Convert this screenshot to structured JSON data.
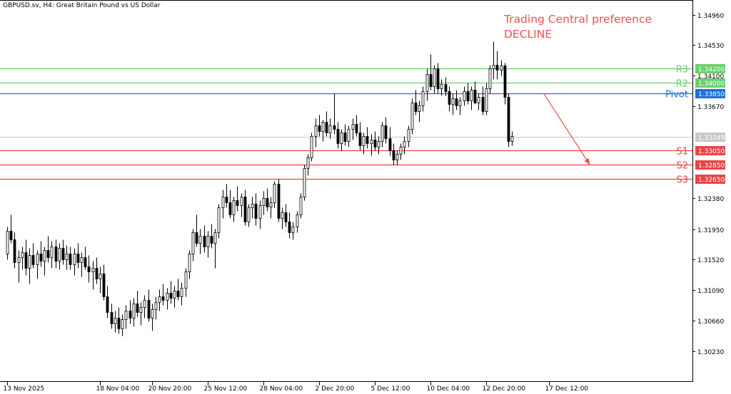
{
  "header": {
    "symbol_line": "GBPUSD.sv, H4:  Great Britain Pound vs US Dollar"
  },
  "annotation": {
    "line1": "Trading Central preference",
    "line2": "DECLINE",
    "color": "#f05050"
  },
  "colors": {
    "resistance": "#6bcf6b",
    "pivot": "#1c6fd8",
    "support": "#e84545",
    "current_price": "#c8c8c8",
    "bull_candle": "#ffffff",
    "bear_candle": "#000000"
  },
  "chart_data": {
    "type": "candlestick",
    "title": "GBPUSD.sv, H4:  Great Britain Pound vs US Dollar",
    "ylim": [
      1.3,
      1.5171
    ],
    "y_ticks": [
      "1.34960",
      "1.34530",
      "1.34100",
      "1.33670",
      "1.32380",
      "1.31950",
      "1.31520",
      "1.31090",
      "1.30660",
      "1.30230"
    ],
    "x_ticks": [
      {
        "label": "13 Nov 2025",
        "index": 0
      },
      {
        "label": "18 Nov 04:00",
        "index": 25
      },
      {
        "label": "20 Nov 20:00",
        "index": 39
      },
      {
        "label": "25 Nov 12:00",
        "index": 54
      },
      {
        "label": "28 Nov 04:00",
        "index": 69
      },
      {
        "label": "2 Dec 20:00",
        "index": 84
      },
      {
        "label": "5 Dec 12:00",
        "index": 99
      },
      {
        "label": "10 Dec 04:00",
        "index": 114
      },
      {
        "label": "12 Dec 20:00",
        "index": 129
      },
      {
        "label": "17 Dec 12:00",
        "index": 146
      }
    ],
    "levels": [
      {
        "name": "R3",
        "value": 1.342,
        "label": "1.34200",
        "kind": "resistance"
      },
      {
        "name": "R2",
        "value": 1.34,
        "label": "1.34000",
        "kind": "resistance"
      },
      {
        "name": "Pivot",
        "value": 1.3385,
        "label": "1.33850",
        "kind": "pivot"
      },
      {
        "name": "S1",
        "value": 1.3305,
        "label": "1.33050",
        "kind": "support"
      },
      {
        "name": "S2",
        "value": 1.3285,
        "label": "1.32850",
        "kind": "support"
      },
      {
        "name": "S3",
        "value": 1.3265,
        "label": "1.32650",
        "kind": "support"
      }
    ],
    "current_price": {
      "value": 1.33249,
      "label": "1.33249"
    },
    "forecast_arrow": {
      "from_index": 144,
      "from_price": 1.3385,
      "to_index": 157,
      "to_price": 1.3285
    },
    "candles": [
      [
        1.316,
        1.3198,
        1.3152,
        1.3192
      ],
      [
        1.3192,
        1.3215,
        1.3175,
        1.318
      ],
      [
        1.318,
        1.319,
        1.314,
        1.3148
      ],
      [
        1.3148,
        1.3165,
        1.312,
        1.3155
      ],
      [
        1.3155,
        1.317,
        1.3138,
        1.3162
      ],
      [
        1.3162,
        1.318,
        1.313,
        1.314
      ],
      [
        1.314,
        1.3168,
        1.3118,
        1.3158
      ],
      [
        1.3158,
        1.3175,
        1.314,
        1.3145
      ],
      [
        1.3145,
        1.3165,
        1.3125,
        1.316
      ],
      [
        1.316,
        1.3178,
        1.3142,
        1.315
      ],
      [
        1.315,
        1.317,
        1.313,
        1.3165
      ],
      [
        1.3165,
        1.3185,
        1.3148,
        1.3155
      ],
      [
        1.3155,
        1.3178,
        1.314,
        1.317
      ],
      [
        1.317,
        1.318,
        1.314,
        1.315
      ],
      [
        1.315,
        1.3175,
        1.3138,
        1.3168
      ],
      [
        1.3168,
        1.318,
        1.3145,
        1.3152
      ],
      [
        1.3152,
        1.3172,
        1.3138,
        1.316
      ],
      [
        1.316,
        1.317,
        1.3138,
        1.3145
      ],
      [
        1.3145,
        1.3168,
        1.313,
        1.316
      ],
      [
        1.316,
        1.3175,
        1.314,
        1.3148
      ],
      [
        1.3148,
        1.3162,
        1.3128,
        1.3155
      ],
      [
        1.3155,
        1.317,
        1.3138,
        1.3142
      ],
      [
        1.3142,
        1.3158,
        1.312,
        1.3135
      ],
      [
        1.3135,
        1.315,
        1.311,
        1.314
      ],
      [
        1.314,
        1.3155,
        1.3118,
        1.3125
      ],
      [
        1.3125,
        1.3142,
        1.3105,
        1.3132
      ],
      [
        1.3132,
        1.3145,
        1.3095,
        1.31
      ],
      [
        1.31,
        1.3115,
        1.307,
        1.3078
      ],
      [
        1.3078,
        1.309,
        1.3055,
        1.3062
      ],
      [
        1.3062,
        1.308,
        1.305,
        1.307
      ],
      [
        1.307,
        1.3085,
        1.3048,
        1.3055
      ],
      [
        1.3055,
        1.3075,
        1.3045,
        1.3068
      ],
      [
        1.3068,
        1.3088,
        1.3055,
        1.308
      ],
      [
        1.308,
        1.3095,
        1.3062,
        1.307
      ],
      [
        1.307,
        1.3098,
        1.3058,
        1.309
      ],
      [
        1.309,
        1.3108,
        1.3072,
        1.3078
      ],
      [
        1.3078,
        1.3092,
        1.306,
        1.3085
      ],
      [
        1.3085,
        1.3102,
        1.307,
        1.3095
      ],
      [
        1.3095,
        1.311,
        1.3065,
        1.307
      ],
      [
        1.307,
        1.309,
        1.3052,
        1.3082
      ],
      [
        1.3082,
        1.31,
        1.3068,
        1.3092
      ],
      [
        1.3092,
        1.311,
        1.308,
        1.31
      ],
      [
        1.31,
        1.3118,
        1.3088,
        1.3095
      ],
      [
        1.3095,
        1.3112,
        1.3082,
        1.3105
      ],
      [
        1.3105,
        1.3122,
        1.309,
        1.3098
      ],
      [
        1.3098,
        1.3115,
        1.3085,
        1.3108
      ],
      [
        1.3108,
        1.3125,
        1.3095,
        1.31
      ],
      [
        1.31,
        1.312,
        1.3088,
        1.3112
      ],
      [
        1.3112,
        1.314,
        1.31,
        1.3135
      ],
      [
        1.3135,
        1.3165,
        1.3125,
        1.316
      ],
      [
        1.316,
        1.3195,
        1.315,
        1.319
      ],
      [
        1.319,
        1.3215,
        1.317,
        1.3175
      ],
      [
        1.3175,
        1.3195,
        1.316,
        1.3185
      ],
      [
        1.3185,
        1.32,
        1.3162,
        1.317
      ],
      [
        1.317,
        1.3192,
        1.3155,
        1.3185
      ],
      [
        1.3185,
        1.3202,
        1.3168,
        1.3175
      ],
      [
        1.3175,
        1.3195,
        1.314,
        1.319
      ],
      [
        1.319,
        1.323,
        1.3182,
        1.3225
      ],
      [
        1.3225,
        1.325,
        1.321,
        1.324
      ],
      [
        1.324,
        1.3258,
        1.3225,
        1.3232
      ],
      [
        1.3232,
        1.325,
        1.321,
        1.3215
      ],
      [
        1.3215,
        1.324,
        1.3205,
        1.3235
      ],
      [
        1.3235,
        1.3255,
        1.322,
        1.3228
      ],
      [
        1.3228,
        1.3245,
        1.3212,
        1.324
      ],
      [
        1.324,
        1.325,
        1.32,
        1.3205
      ],
      [
        1.3205,
        1.323,
        1.3198,
        1.3225
      ],
      [
        1.3225,
        1.324,
        1.321,
        1.323
      ],
      [
        1.323,
        1.3245,
        1.32,
        1.321
      ],
      [
        1.321,
        1.3235,
        1.3195,
        1.3228
      ],
      [
        1.3228,
        1.3248,
        1.3215,
        1.3238
      ],
      [
        1.3238,
        1.3252,
        1.322,
        1.3226
      ],
      [
        1.3226,
        1.324,
        1.321,
        1.3232
      ],
      [
        1.3232,
        1.3262,
        1.3225,
        1.3258
      ],
      [
        1.3258,
        1.3265,
        1.3205,
        1.321
      ],
      [
        1.321,
        1.3225,
        1.3195,
        1.3218
      ],
      [
        1.3218,
        1.323,
        1.3198,
        1.3205
      ],
      [
        1.3205,
        1.3218,
        1.3182,
        1.319
      ],
      [
        1.319,
        1.3205,
        1.318,
        1.3198
      ],
      [
        1.3198,
        1.322,
        1.319,
        1.3215
      ],
      [
        1.3215,
        1.3245,
        1.321,
        1.324
      ],
      [
        1.324,
        1.3285,
        1.3235,
        1.328
      ],
      [
        1.328,
        1.33,
        1.327,
        1.3295
      ],
      [
        1.3295,
        1.333,
        1.329,
        1.3325
      ],
      [
        1.3325,
        1.335,
        1.331,
        1.334
      ],
      [
        1.334,
        1.3355,
        1.3325,
        1.3332
      ],
      [
        1.3332,
        1.3348,
        1.3318,
        1.3345
      ],
      [
        1.3345,
        1.336,
        1.3325,
        1.333
      ],
      [
        1.333,
        1.335,
        1.3322,
        1.334
      ],
      [
        1.334,
        1.3385,
        1.3328,
        1.3335
      ],
      [
        1.3335,
        1.3345,
        1.3308,
        1.3315
      ],
      [
        1.3315,
        1.3335,
        1.3305,
        1.333
      ],
      [
        1.333,
        1.3342,
        1.3312,
        1.3318
      ],
      [
        1.3318,
        1.334,
        1.331,
        1.3335
      ],
      [
        1.3335,
        1.335,
        1.332,
        1.3342
      ],
      [
        1.3342,
        1.3355,
        1.3325,
        1.333
      ],
      [
        1.333,
        1.3345,
        1.3305,
        1.3312
      ],
      [
        1.3312,
        1.333,
        1.33,
        1.3325
      ],
      [
        1.3325,
        1.3338,
        1.3308,
        1.3315
      ],
      [
        1.3315,
        1.3328,
        1.3298,
        1.332
      ],
      [
        1.332,
        1.3332,
        1.3305,
        1.331
      ],
      [
        1.331,
        1.3325,
        1.33,
        1.3318
      ],
      [
        1.3318,
        1.3345,
        1.331,
        1.334
      ],
      [
        1.334,
        1.3352,
        1.3315,
        1.3322
      ],
      [
        1.3322,
        1.3338,
        1.3298,
        1.3305
      ],
      [
        1.3305,
        1.3315,
        1.3285,
        1.3292
      ],
      [
        1.3292,
        1.3305,
        1.3285,
        1.33
      ],
      [
        1.33,
        1.3315,
        1.3292,
        1.331
      ],
      [
        1.331,
        1.3325,
        1.33,
        1.3318
      ],
      [
        1.3318,
        1.334,
        1.331,
        1.3335
      ],
      [
        1.3335,
        1.3378,
        1.3328,
        1.3372
      ],
      [
        1.3372,
        1.339,
        1.3355,
        1.336
      ],
      [
        1.336,
        1.3375,
        1.3345,
        1.3368
      ],
      [
        1.3368,
        1.3395,
        1.336,
        1.3388
      ],
      [
        1.3388,
        1.342,
        1.3375,
        1.3412
      ],
      [
        1.3412,
        1.344,
        1.339,
        1.3395
      ],
      [
        1.3395,
        1.3425,
        1.3385,
        1.342
      ],
      [
        1.342,
        1.3428,
        1.3385,
        1.3392
      ],
      [
        1.3392,
        1.3405,
        1.3382,
        1.3398
      ],
      [
        1.3398,
        1.3408,
        1.3382,
        1.3388
      ],
      [
        1.3388,
        1.3395,
        1.336,
        1.337
      ],
      [
        1.337,
        1.3385,
        1.3355,
        1.3378
      ],
      [
        1.3378,
        1.339,
        1.3362,
        1.3368
      ],
      [
        1.3368,
        1.338,
        1.3355,
        1.3375
      ],
      [
        1.3375,
        1.3395,
        1.3368,
        1.3388
      ],
      [
        1.3388,
        1.34,
        1.337,
        1.3375
      ],
      [
        1.3375,
        1.3395,
        1.3362,
        1.339
      ],
      [
        1.339,
        1.3402,
        1.337,
        1.3372
      ],
      [
        1.3372,
        1.3385,
        1.3362,
        1.338
      ],
      [
        1.338,
        1.3395,
        1.3355,
        1.336
      ],
      [
        1.336,
        1.34,
        1.3355,
        1.3392
      ],
      [
        1.3392,
        1.3425,
        1.3385,
        1.342
      ],
      [
        1.342,
        1.3458,
        1.3405,
        1.3425
      ],
      [
        1.3425,
        1.3445,
        1.3405,
        1.3418
      ],
      [
        1.3418,
        1.3432,
        1.341,
        1.3424
      ],
      [
        1.3424,
        1.3428,
        1.337,
        1.338
      ],
      [
        1.338,
        1.3385,
        1.331,
        1.3318
      ],
      [
        1.3318,
        1.3332,
        1.3312,
        1.33249
      ]
    ]
  }
}
